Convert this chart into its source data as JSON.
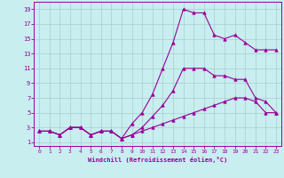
{
  "xlabel": "Windchill (Refroidissement éolien,°C)",
  "bg_color": "#c8eef0",
  "line_color": "#990099",
  "grid_color": "#aacccc",
  "xlim": [
    -0.5,
    23.5
  ],
  "ylim": [
    0.5,
    20
  ],
  "xticks": [
    0,
    1,
    2,
    3,
    4,
    5,
    6,
    7,
    8,
    9,
    10,
    11,
    12,
    13,
    14,
    15,
    16,
    17,
    18,
    19,
    20,
    21,
    22,
    23
  ],
  "yticks": [
    1,
    3,
    5,
    7,
    9,
    11,
    13,
    15,
    17,
    19
  ],
  "line1_x": [
    0,
    1,
    2,
    3,
    4,
    5,
    6,
    7,
    8,
    9,
    10,
    11,
    12,
    13,
    14,
    15,
    16,
    17,
    18,
    19,
    20,
    21,
    22,
    23
  ],
  "line1_y": [
    2.5,
    2.5,
    2.0,
    3.0,
    3.0,
    2.0,
    2.5,
    2.5,
    1.5,
    2.0,
    3.0,
    4.5,
    6.0,
    8.0,
    11.0,
    11.0,
    11.0,
    10.0,
    10.0,
    9.5,
    9.5,
    7.0,
    6.5,
    5.0
  ],
  "line2_x": [
    0,
    1,
    2,
    3,
    4,
    5,
    6,
    7,
    8,
    9,
    10,
    11,
    12,
    13,
    14,
    15,
    16,
    17,
    18,
    19,
    20,
    21,
    22,
    23
  ],
  "line2_y": [
    2.5,
    2.5,
    2.0,
    3.0,
    3.0,
    2.0,
    2.5,
    2.5,
    1.5,
    3.5,
    5.0,
    7.5,
    11.0,
    14.5,
    19.0,
    18.5,
    18.5,
    15.5,
    15.0,
    15.5,
    14.5,
    13.5,
    13.5,
    13.5
  ],
  "line3_x": [
    0,
    1,
    2,
    3,
    4,
    5,
    6,
    7,
    8,
    9,
    10,
    11,
    12,
    13,
    14,
    15,
    16,
    17,
    18,
    19,
    20,
    21,
    22,
    23
  ],
  "line3_y": [
    2.5,
    2.5,
    2.0,
    3.0,
    3.0,
    2.0,
    2.5,
    2.5,
    1.5,
    2.0,
    2.5,
    3.0,
    3.5,
    4.0,
    4.5,
    5.0,
    5.5,
    6.0,
    6.5,
    7.0,
    7.0,
    6.5,
    5.0,
    5.0
  ]
}
